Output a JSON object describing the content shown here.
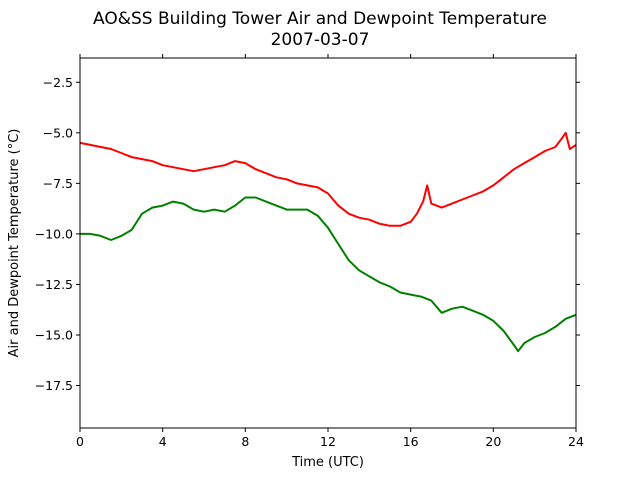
{
  "chart_data": {
    "type": "line",
    "title": "AO&SS Building Tower Air and Dewpoint Temperature",
    "subtitle": "2007-03-07",
    "xlabel": "Time (UTC)",
    "ylabel": "Air and Dewpoint Temperature (°C)",
    "xlim": [
      0,
      24
    ],
    "ylim": [
      -19.6,
      -1.3
    ],
    "x_ticks": [
      0,
      4,
      8,
      12,
      16,
      20,
      24
    ],
    "y_ticks": [
      -2.5,
      -5.0,
      -7.5,
      -10.0,
      -12.5,
      -15.0,
      -17.5
    ],
    "x_tick_labels": [
      "0",
      "4",
      "8",
      "12",
      "16",
      "20",
      "24"
    ],
    "y_tick_labels": [
      "−2.5",
      "−5.0",
      "−7.5",
      "−10.0",
      "−12.5",
      "−15.0",
      "−17.5"
    ],
    "grid": false,
    "series": [
      {
        "color": "#ff0000",
        "x": [
          0,
          0.5,
          1,
          1.5,
          2,
          2.5,
          3,
          3.5,
          4,
          4.5,
          5,
          5.5,
          6,
          6.5,
          7,
          7.5,
          8,
          8.5,
          9,
          9.5,
          10,
          10.5,
          11,
          11.5,
          12,
          12.5,
          13,
          13.5,
          14,
          14.5,
          15,
          15.5,
          16,
          16.3,
          16.6,
          16.8,
          17,
          17.5,
          18,
          18.5,
          19,
          19.5,
          20,
          20.5,
          21,
          21.5,
          22,
          22.5,
          23,
          23.3,
          23.5,
          23.7,
          24
        ],
        "y": [
          -5.5,
          -5.6,
          -5.7,
          -5.8,
          -6.0,
          -6.2,
          -6.3,
          -6.4,
          -6.6,
          -6.7,
          -6.8,
          -6.9,
          -6.8,
          -6.7,
          -6.6,
          -6.4,
          -6.5,
          -6.8,
          -7.0,
          -7.2,
          -7.3,
          -7.5,
          -7.6,
          -7.7,
          -8.0,
          -8.6,
          -9.0,
          -9.2,
          -9.3,
          -9.5,
          -9.6,
          -9.6,
          -9.4,
          -9.0,
          -8.4,
          -7.6,
          -8.5,
          -8.7,
          -8.5,
          -8.3,
          -8.1,
          -7.9,
          -7.6,
          -7.2,
          -6.8,
          -6.5,
          -6.2,
          -5.9,
          -5.7,
          -5.3,
          -5.0,
          -5.8,
          -5.6
        ]
      },
      {
        "color": "#008000",
        "x": [
          0,
          0.5,
          1,
          1.5,
          2,
          2.5,
          3,
          3.5,
          4,
          4.5,
          5,
          5.5,
          6,
          6.5,
          7,
          7.5,
          8,
          8.5,
          9,
          9.5,
          10,
          10.5,
          11,
          11.5,
          12,
          12.5,
          13,
          13.5,
          14,
          14.5,
          15,
          15.5,
          16,
          16.5,
          17,
          17.5,
          18,
          18.5,
          19,
          19.5,
          20,
          20.5,
          21,
          21.2,
          21.5,
          22,
          22.5,
          23,
          23.5,
          24
        ],
        "y": [
          -10.0,
          -10.0,
          -10.1,
          -10.3,
          -10.1,
          -9.8,
          -9.0,
          -8.7,
          -8.6,
          -8.4,
          -8.5,
          -8.8,
          -8.9,
          -8.8,
          -8.9,
          -8.6,
          -8.2,
          -8.2,
          -8.4,
          -8.6,
          -8.8,
          -8.8,
          -8.8,
          -9.1,
          -9.7,
          -10.5,
          -11.3,
          -11.8,
          -12.1,
          -12.4,
          -12.6,
          -12.9,
          -13.0,
          -13.1,
          -13.3,
          -13.9,
          -13.7,
          -13.6,
          -13.8,
          -14.0,
          -14.3,
          -14.8,
          -15.5,
          -15.8,
          -15.4,
          -15.1,
          -14.9,
          -14.6,
          -14.2,
          -14.0
        ]
      }
    ]
  }
}
